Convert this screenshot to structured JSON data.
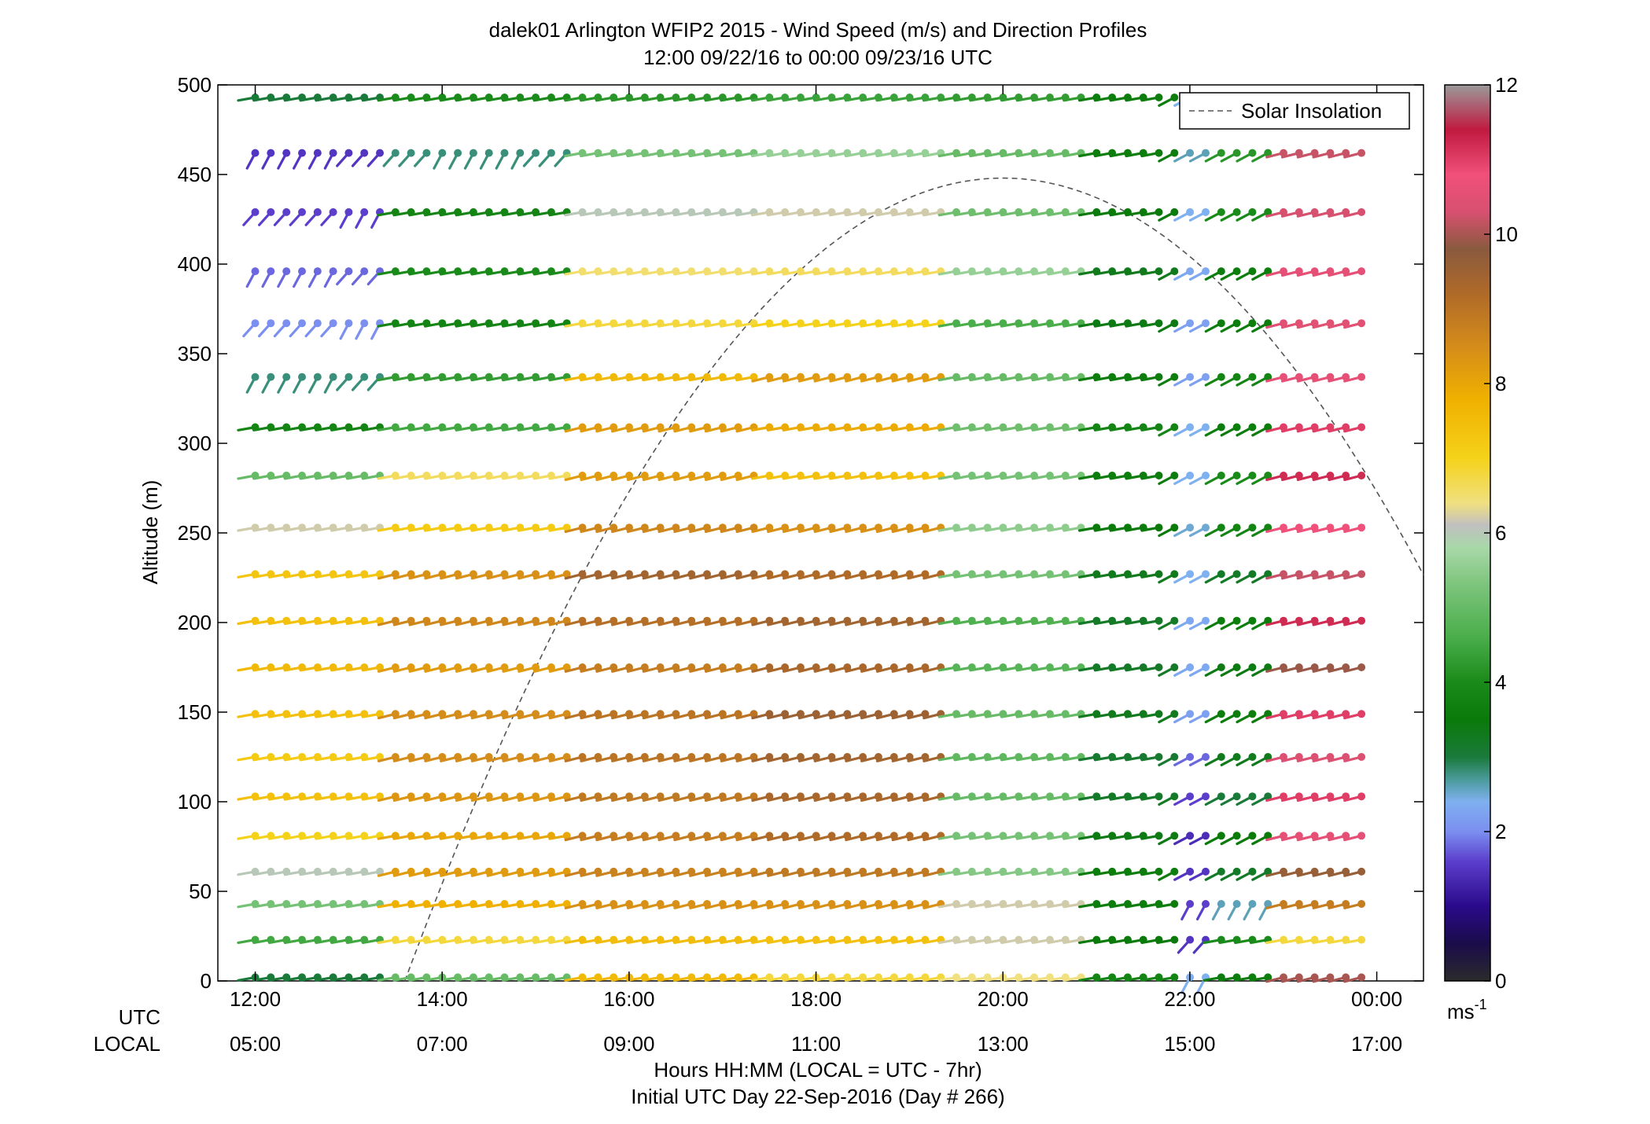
{
  "chart_data": {
    "type": "wind-barb-profile",
    "title": "dalek01 Arlington WFIP2 2015 - Wind Speed (m/s) and Direction Profiles",
    "subtitle": "12:00 09/22/16 to 00:00 09/23/16  UTC",
    "ylabel": "Altitude (m)",
    "xlabel": "Hours HH:MM  (LOCAL = UTC - 7hr)",
    "xlabel2": "Initial UTC Day 22-Sep-2016 (Day # 266)",
    "row_label_utc": "UTC",
    "row_label_local": "LOCAL",
    "ylim": [
      0,
      500
    ],
    "xlim_hours": [
      11.6,
      24.5
    ],
    "y_ticks": [
      0,
      50,
      100,
      150,
      200,
      250,
      300,
      350,
      400,
      450,
      500
    ],
    "x_ticks": [
      {
        "hour": 12,
        "utc": "12:00",
        "local": "05:00"
      },
      {
        "hour": 14,
        "utc": "14:00",
        "local": "07:00"
      },
      {
        "hour": 16,
        "utc": "16:00",
        "local": "09:00"
      },
      {
        "hour": 18,
        "utc": "18:00",
        "local": "11:00"
      },
      {
        "hour": 20,
        "utc": "20:00",
        "local": "13:00"
      },
      {
        "hour": 22,
        "utc": "22:00",
        "local": "15:00"
      },
      {
        "hour": 24,
        "utc": "00:00",
        "local": "17:00"
      }
    ],
    "time_range_hours": [
      12.0,
      23.9
    ],
    "time_step_hours": 0.1667,
    "altitudes": [
      2,
      23,
      43,
      61,
      81,
      103,
      125,
      149,
      175,
      201,
      227,
      253,
      282,
      309,
      337,
      367,
      396,
      429,
      462,
      493
    ],
    "segments": [
      {
        "from": 12.0,
        "to": 13.4,
        "speeds": [
          3.0,
          4.5,
          5.2,
          6.0,
          7.0,
          7.4,
          7.2,
          7.4,
          7.6,
          7.4,
          7.3,
          6.2,
          5.0,
          3.8,
          2.8,
          2.0,
          1.8,
          1.6,
          1.5,
          3.0
        ]
      },
      {
        "from": 13.4,
        "to": 15.5,
        "speeds": [
          5.0,
          6.8,
          7.8,
          8.2,
          8.0,
          8.3,
          8.5,
          8.5,
          8.2,
          8.6,
          8.4,
          7.2,
          6.6,
          4.5,
          4.3,
          3.8,
          4.0,
          3.8,
          2.8,
          4.0
        ]
      },
      {
        "from": 15.5,
        "to": 17.5,
        "speeds": [
          7.6,
          7.5,
          8.4,
          8.7,
          8.8,
          8.9,
          9.0,
          9.0,
          8.8,
          9.1,
          9.4,
          8.6,
          8.2,
          8.2,
          7.6,
          6.8,
          6.5,
          6.0,
          5.2,
          4.2
        ]
      },
      {
        "from": 17.5,
        "to": 19.5,
        "speeds": [
          6.8,
          7.4,
          8.4,
          8.9,
          9.2,
          9.3,
          9.4,
          9.5,
          9.3,
          9.4,
          9.2,
          8.4,
          7.4,
          7.9,
          8.2,
          7.0,
          6.6,
          6.2,
          5.6,
          4.4
        ]
      },
      {
        "from": 19.5,
        "to": 20.9,
        "speeds": [
          6.4,
          6.2,
          6.2,
          5.4,
          5.2,
          5.0,
          4.9,
          5.0,
          4.8,
          4.7,
          5.2,
          5.5,
          5.2,
          5.1,
          5.0,
          4.6,
          5.6,
          5.1,
          5.0,
          4.3
        ]
      },
      {
        "from": 20.9,
        "to": 21.9,
        "speeds": [
          3.8,
          3.5,
          3.6,
          3.6,
          3.4,
          3.2,
          3.1,
          3.3,
          3.2,
          3.2,
          3.3,
          3.5,
          3.6,
          3.8,
          3.6,
          3.4,
          3.3,
          3.5,
          3.6,
          3.6
        ]
      },
      {
        "from": 21.9,
        "to": 22.3,
        "speeds": [
          2.4,
          1.5,
          1.6,
          1.5,
          1.4,
          1.6,
          1.8,
          2.2,
          2.3,
          2.3,
          2.4,
          2.5,
          2.4,
          2.4,
          2.2,
          2.2,
          2.3,
          2.4,
          2.6,
          2.4
        ]
      },
      {
        "from": 22.3,
        "to": 23.0,
        "speeds": [
          3.6,
          4.0,
          2.6,
          3.2,
          3.5,
          3.0,
          3.3,
          3.6,
          3.4,
          3.6,
          3.2,
          3.8,
          4.0,
          3.6,
          3.8,
          3.6,
          3.6,
          4.0,
          4.2,
          3.6
        ]
      },
      {
        "from": 23.0,
        "to": 23.9,
        "speeds": [
          10.0,
          6.8,
          8.8,
          9.6,
          10.6,
          11.0,
          10.4,
          11.0,
          9.9,
          11.2,
          10.2,
          10.8,
          11.2,
          11.0,
          10.6,
          10.5,
          10.6,
          10.3,
          10.2,
          3.8
        ]
      }
    ],
    "solar_insolation": {
      "label": "Solar Insolation",
      "start_hour": 13.6,
      "end_hour": 24.5,
      "peak_hour": 20.0,
      "peak_altitude": 448
    },
    "legend_position": "top-right",
    "colorbar": {
      "min": 0,
      "max": 12,
      "ticks": [
        0,
        2,
        4,
        6,
        8,
        10,
        12
      ],
      "unit_label": "ms"
    },
    "colormap_stops": [
      {
        "v": 0.0,
        "c": "#2b2b2b"
      },
      {
        "v": 0.5,
        "c": "#1a0c4a"
      },
      {
        "v": 1.0,
        "c": "#2a0a8a"
      },
      {
        "v": 1.6,
        "c": "#5b3ecc"
      },
      {
        "v": 2.0,
        "c": "#7b8ff0"
      },
      {
        "v": 2.4,
        "c": "#7fb0f0"
      },
      {
        "v": 2.7,
        "c": "#4a9a9a"
      },
      {
        "v": 3.0,
        "c": "#1a7a3a"
      },
      {
        "v": 3.5,
        "c": "#0a7a0a"
      },
      {
        "v": 4.0,
        "c": "#1a8a1a"
      },
      {
        "v": 4.6,
        "c": "#4aae4a"
      },
      {
        "v": 5.3,
        "c": "#7cc47c"
      },
      {
        "v": 5.8,
        "c": "#a8d8a8"
      },
      {
        "v": 6.1,
        "c": "#c0c0c0"
      },
      {
        "v": 6.4,
        "c": "#f0e080"
      },
      {
        "v": 7.0,
        "c": "#f5d21a"
      },
      {
        "v": 7.8,
        "c": "#f0b000"
      },
      {
        "v": 8.5,
        "c": "#d48c1a"
      },
      {
        "v": 9.2,
        "c": "#b06a28"
      },
      {
        "v": 9.8,
        "c": "#8a5a3e"
      },
      {
        "v": 10.3,
        "c": "#d85070"
      },
      {
        "v": 10.8,
        "c": "#f0507a"
      },
      {
        "v": 11.4,
        "c": "#c01a40"
      },
      {
        "v": 12.0,
        "c": "#9a9a9a"
      }
    ]
  }
}
